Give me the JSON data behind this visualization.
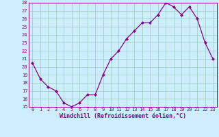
{
  "x": [
    0,
    1,
    2,
    3,
    4,
    5,
    6,
    7,
    8,
    9,
    10,
    11,
    12,
    13,
    14,
    15,
    16,
    17,
    18,
    19,
    20,
    21,
    22,
    23
  ],
  "y": [
    20.5,
    18.5,
    17.5,
    17.0,
    15.5,
    15.0,
    15.5,
    16.5,
    16.5,
    19.0,
    21.0,
    22.0,
    23.5,
    24.5,
    25.5,
    25.5,
    26.5,
    28.0,
    27.5,
    26.5,
    27.5,
    26.0,
    23.0,
    21.0
  ],
  "xlim": [
    -0.5,
    23.5
  ],
  "ylim": [
    15,
    28
  ],
  "yticks": [
    15,
    16,
    17,
    18,
    19,
    20,
    21,
    22,
    23,
    24,
    25,
    26,
    27,
    28
  ],
  "xticks": [
    0,
    1,
    2,
    3,
    4,
    5,
    6,
    7,
    8,
    9,
    10,
    11,
    12,
    13,
    14,
    15,
    16,
    17,
    18,
    19,
    20,
    21,
    22,
    23
  ],
  "line_color": "#880088",
  "marker_color": "#880088",
  "bg_color": "#cceeff",
  "grid_color": "#99ccbb",
  "xlabel": "Windchill (Refroidissement éolien,°C)",
  "xlabel_fontsize": 6,
  "tick_fontsize": 5,
  "tick_color": "#880088",
  "spine_color": "#880088",
  "marker": "D",
  "marker_size": 2.0,
  "line_width": 0.9
}
